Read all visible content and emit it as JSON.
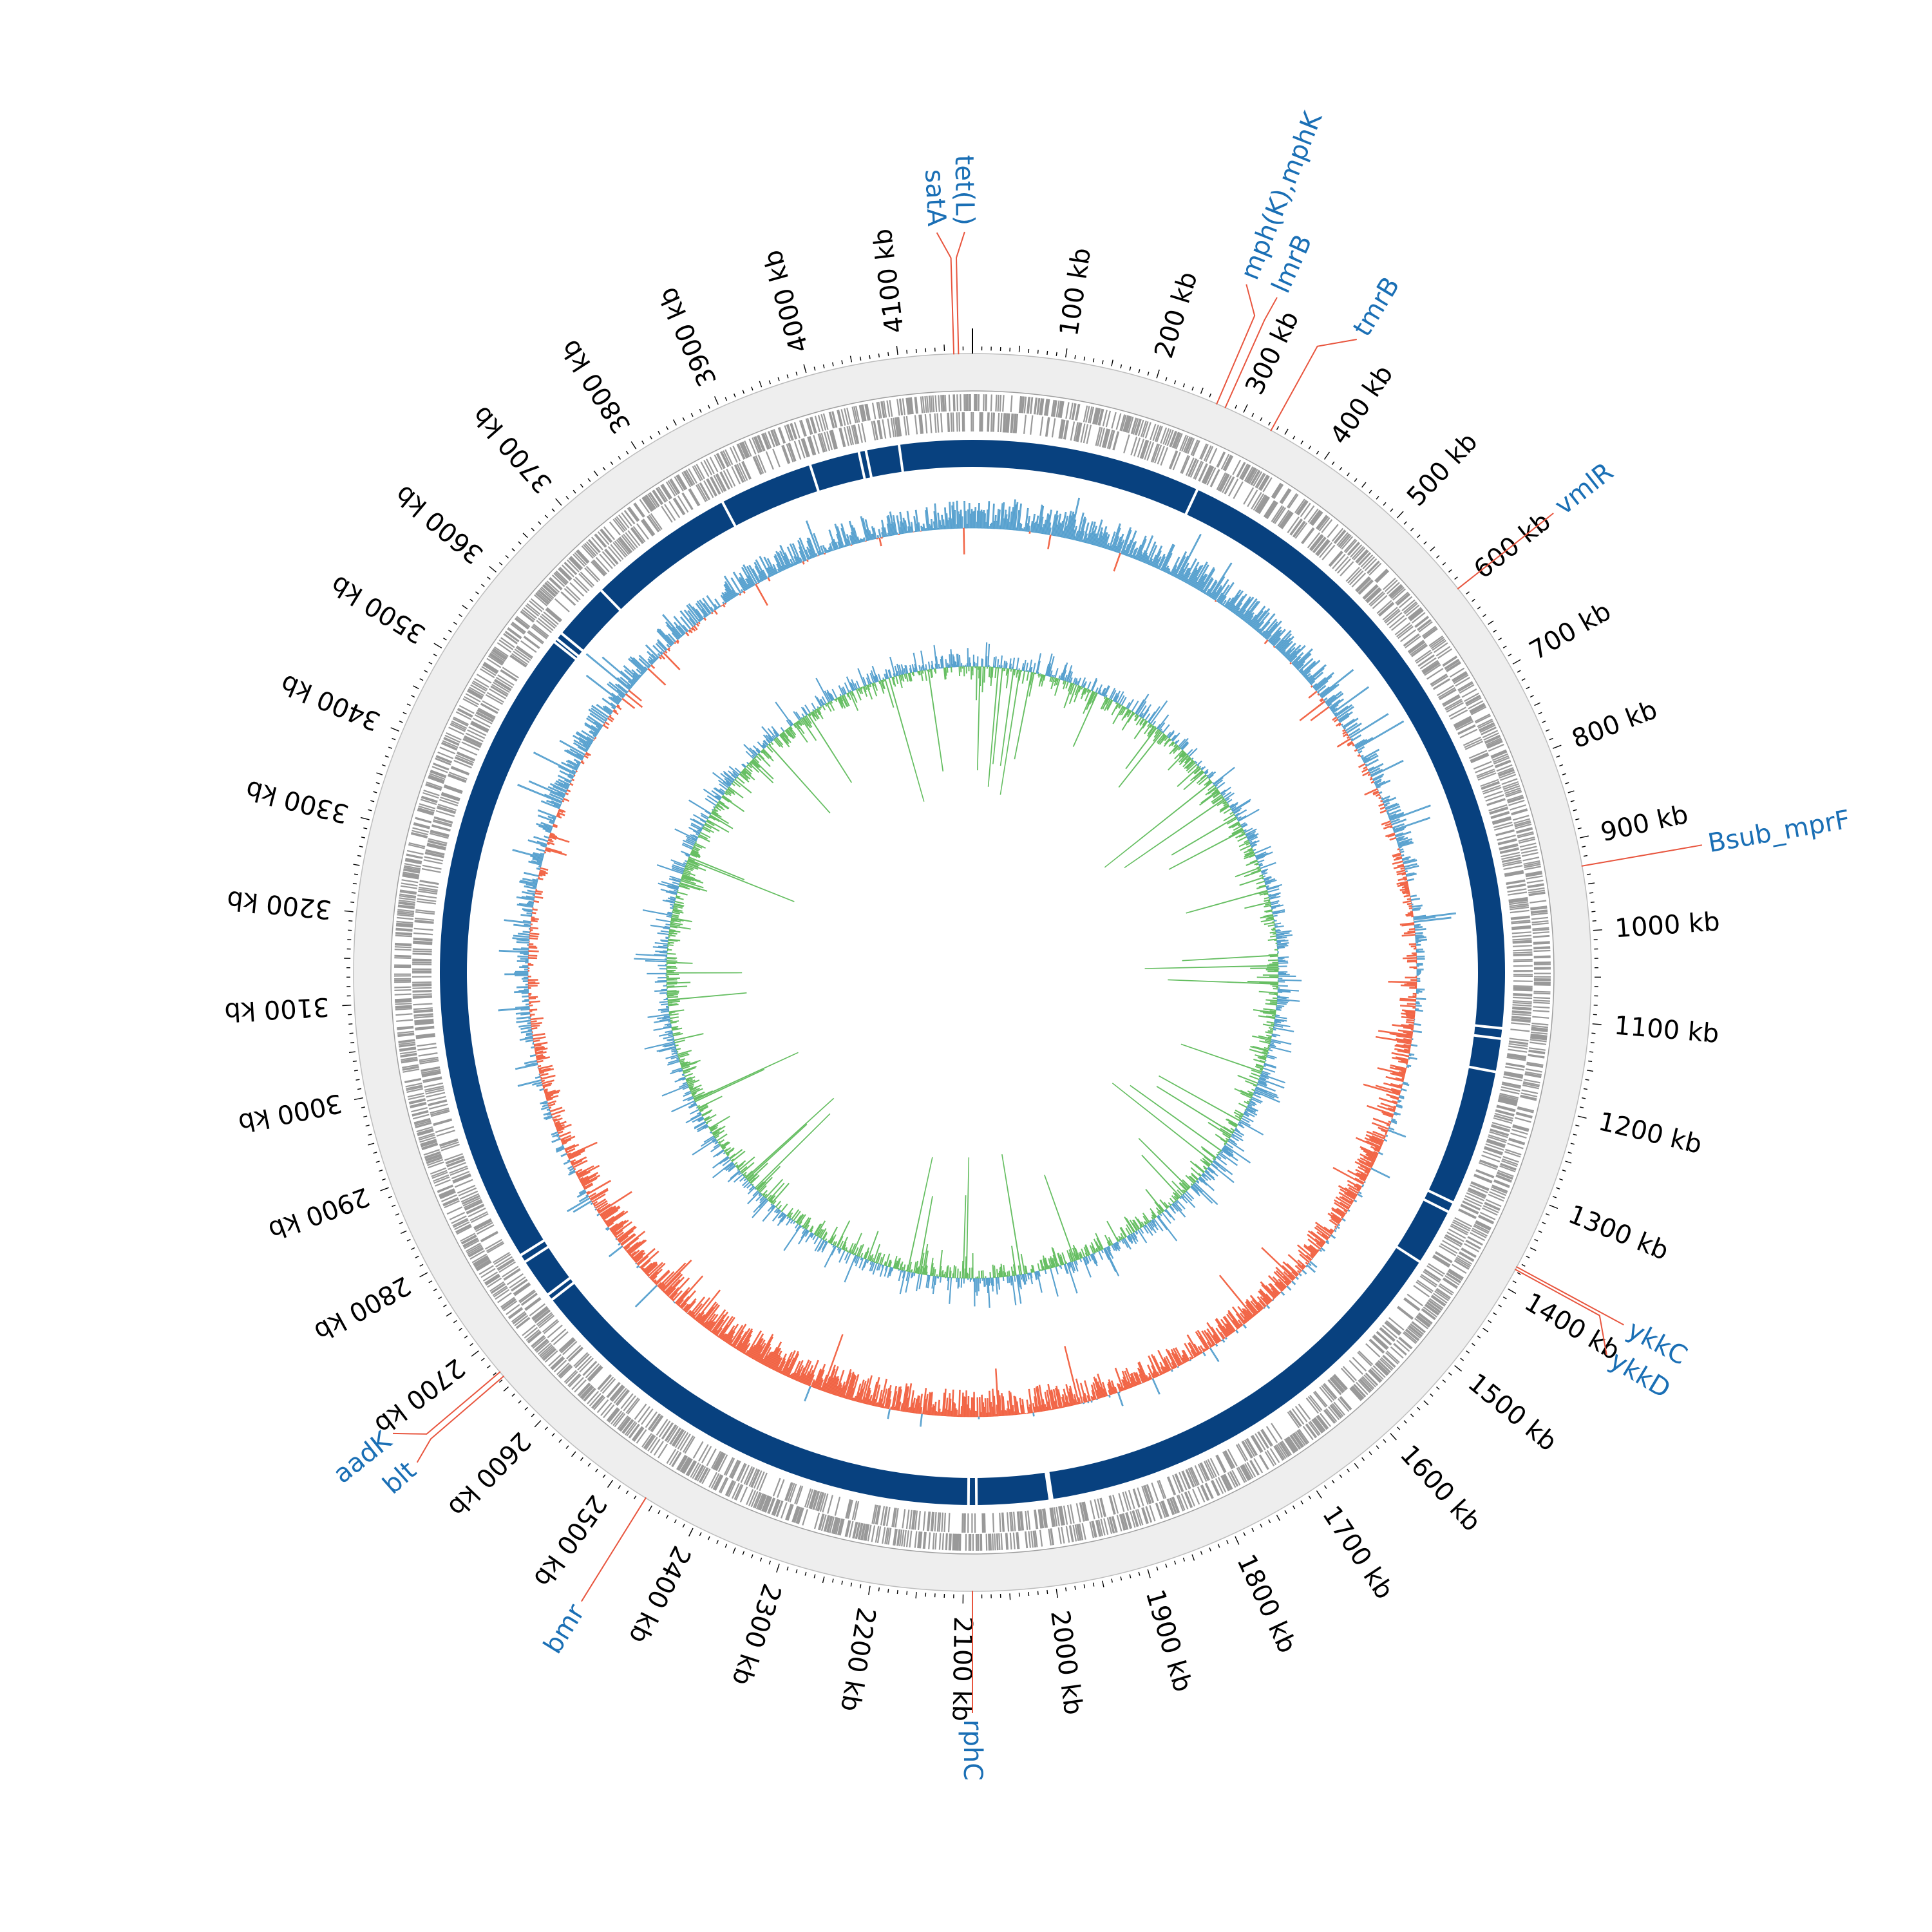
{
  "genome": {
    "length_kb": 4180,
    "tick_label_suffix": " kb",
    "ticks_kb": [
      0,
      100,
      200,
      300,
      400,
      500,
      600,
      700,
      800,
      900,
      1000,
      1100,
      1200,
      1300,
      1400,
      1500,
      1600,
      1700,
      1800,
      1900,
      2000,
      2100,
      2200,
      2300,
      2400,
      2500,
      2600,
      2700,
      2800,
      2900,
      3000,
      3100,
      3200,
      3300,
      3400,
      3500,
      3600,
      3700,
      3800,
      3900,
      4000,
      4100
    ],
    "tick_labels": [
      "",
      "100 kb",
      "200 kb",
      "300 kb",
      "400 kb",
      "500 kb",
      "600 kb",
      "700 kb",
      "800 kb",
      "900 kb",
      "1000 kb",
      "1100 kb",
      "1200 kb",
      "1300 kb",
      "1400 kb",
      "1500 kb",
      "1600 kb",
      "1700 kb",
      "1800 kb",
      "1900 kb",
      "2000 kb",
      "2100 kb",
      "2200 kb",
      "2300 kb",
      "2400 kb",
      "2500 kb",
      "2600 kb",
      "2700 kb",
      "2800 kb",
      "2900 kb",
      "3000 kb",
      "3100 kb",
      "3200 kb",
      "3300 kb",
      "3400 kb",
      "3500 kb",
      "3600 kb",
      "3700 kb",
      "3800 kb",
      "3900 kb",
      "4000 kb",
      "4100 kb"
    ]
  },
  "genes": [
    {
      "name": "tet(L)",
      "position_kb": 4165
    },
    {
      "name": "satA",
      "position_kb": 4160
    },
    {
      "name": "mph(K),mphK",
      "position_kb": 270
    },
    {
      "name": "lmrB",
      "position_kb": 280
    },
    {
      "name": "tmrB",
      "position_kb": 335
    },
    {
      "name": "vmlR",
      "position_kb": 600
    },
    {
      "name": "Bsub_mprF",
      "position_kb": 930
    },
    {
      "name": "ykkC",
      "position_kb": 1375
    },
    {
      "name": "ykkD",
      "position_kb": 1378
    },
    {
      "name": "rphC",
      "position_kb": 2090
    },
    {
      "name": "bmr",
      "position_kb": 2460
    },
    {
      "name": "aadK",
      "position_kb": 2668
    },
    {
      "name": "blt",
      "position_kb": 2662
    }
  ],
  "contig_gaps_kb": [
    290,
    1115,
    1128,
    1170,
    1342,
    1355,
    1427,
    1990,
    1993,
    2085,
    2095,
    2695,
    2703,
    2753,
    2763,
    3580,
    3585,
    3594,
    3667,
    3855,
    3974,
    4037,
    4046,
    4088
  ],
  "colors": {
    "backbone": "#08417f",
    "label_line": "#e8553e",
    "gene_label": "#1a6fb5",
    "gc_content_high": "#4f9ccc",
    "gc_content_low": "#f15f3f",
    "gc_skew_positive": "#4f9ccc",
    "gc_skew_negative": "#63bd5f",
    "cds": "#999999",
    "ring_background": "#eeeeee"
  }
}
